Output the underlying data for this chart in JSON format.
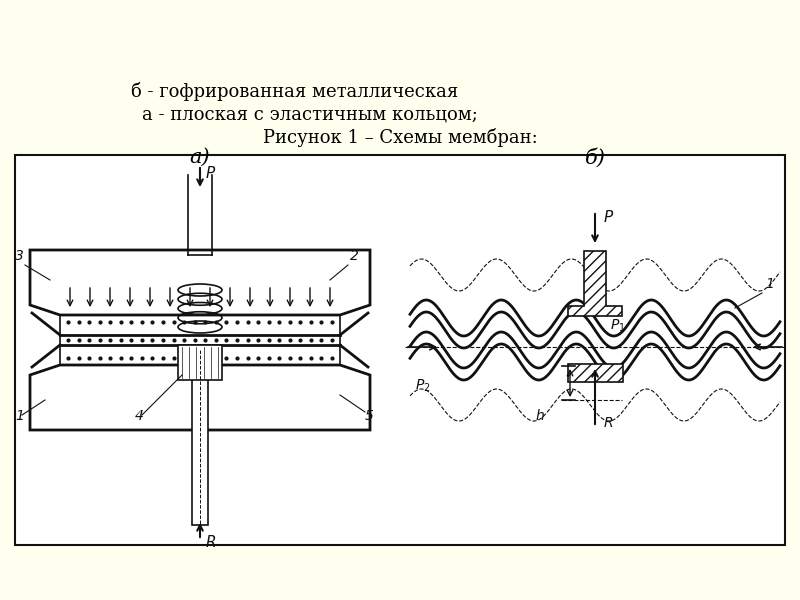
{
  "bg_color": "#fffff0",
  "panel_bg": "#ffffff",
  "line_color": "#111111",
  "caption_line1": "Рисунок 1 – Схемы мембран:",
  "caption_line2": "а - плоская с эластичным кольцом;",
  "caption_line3": "б - гофрированная металлическая",
  "label_a": "а)",
  "label_b": "б)"
}
